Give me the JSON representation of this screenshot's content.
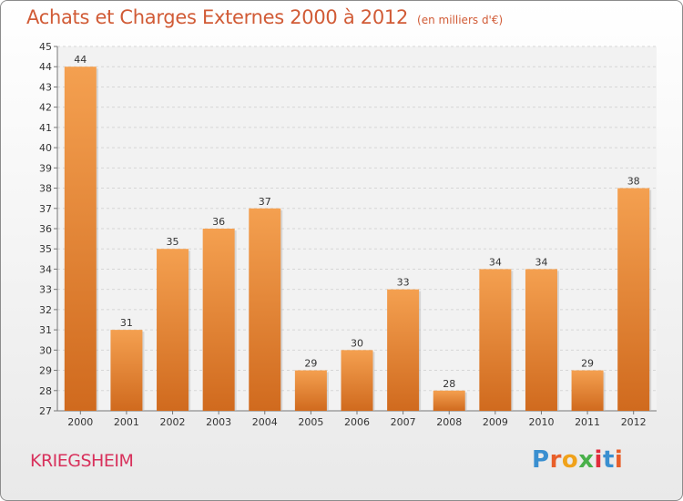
{
  "chart_data": {
    "type": "bar",
    "title": "Achats et Charges Externes 2000 à 2012",
    "subtitle": "(en milliers d'€)",
    "categories": [
      "2000",
      "2001",
      "2002",
      "2003",
      "2004",
      "2005",
      "2006",
      "2007",
      "2008",
      "2009",
      "2010",
      "2011",
      "2012"
    ],
    "values": [
      44,
      31,
      35,
      36,
      37,
      29,
      30,
      33,
      28,
      34,
      34,
      29,
      38
    ],
    "ylim": [
      27,
      45
    ],
    "yticks": [
      27,
      28,
      29,
      30,
      31,
      32,
      33,
      34,
      35,
      36,
      37,
      38,
      39,
      40,
      41,
      42,
      43,
      44,
      45
    ],
    "grid": true,
    "bar_color": "#f0883a"
  },
  "footer": {
    "city": "KRIEGSHEIM",
    "logo": "Proxiti",
    "logo_colors": [
      "#3a8fd0",
      "#e85f2a",
      "#f0a21a",
      "#49b04a",
      "#e02c3c",
      "#3a8fd0",
      "#e85f2a"
    ]
  }
}
